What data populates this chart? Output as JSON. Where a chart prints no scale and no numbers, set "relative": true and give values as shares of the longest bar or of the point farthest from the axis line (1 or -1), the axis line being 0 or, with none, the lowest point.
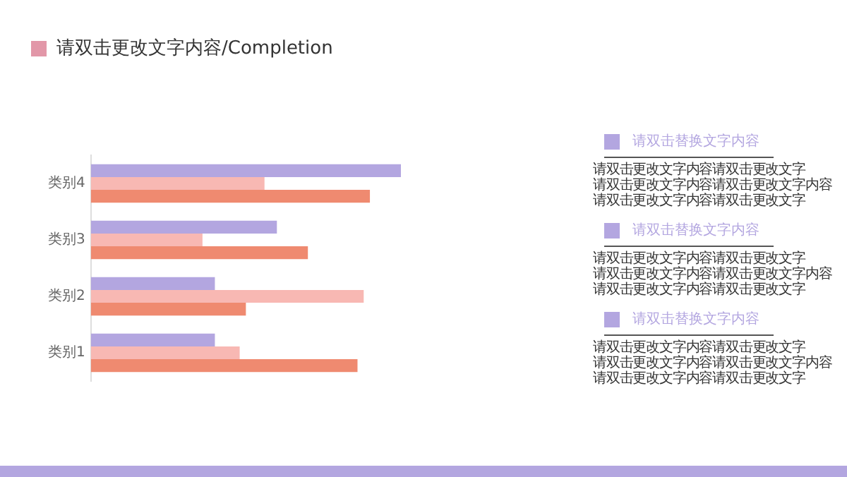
{
  "chart_data": {
    "type": "bar",
    "orientation": "horizontal",
    "relative": true,
    "title": "请双击更改文字内容/Completion",
    "categories": [
      "类别4",
      "类别3",
      "类别2",
      "类别1"
    ],
    "series": [
      {
        "color": "#b3a6e0",
        "values": [
          1,
          0.6,
          0.4,
          0.4
        ]
      },
      {
        "color": "#f8b8b3",
        "values": [
          0.56,
          0.36,
          0.88,
          0.48
        ]
      },
      {
        "color": "#ef8a70",
        "values": [
          0.9,
          0.7,
          0.5,
          0.86
        ]
      }
    ],
    "grid": false,
    "legend": false,
    "annotations": [
      "请双击替换文字内容",
      "请双击更改文字内容请双击更改文字",
      "请双击更改文字内容请双击更改文字内容",
      "请双击更改文字内容请双击更改文字",
      "请双击替换文字内容",
      "请双击更改文字内容请双击更改文字",
      "请双击更改文字内容请双击更改文字内容",
      "请双击更改文字内容请双击更改文字",
      "请双击替换文字内容",
      "请双击更改文字内容请双击更改文字",
      "请双击更改文字内容请双击更改文字内容",
      "请双击更改文字内容请双击更改文字"
    ]
  }
}
